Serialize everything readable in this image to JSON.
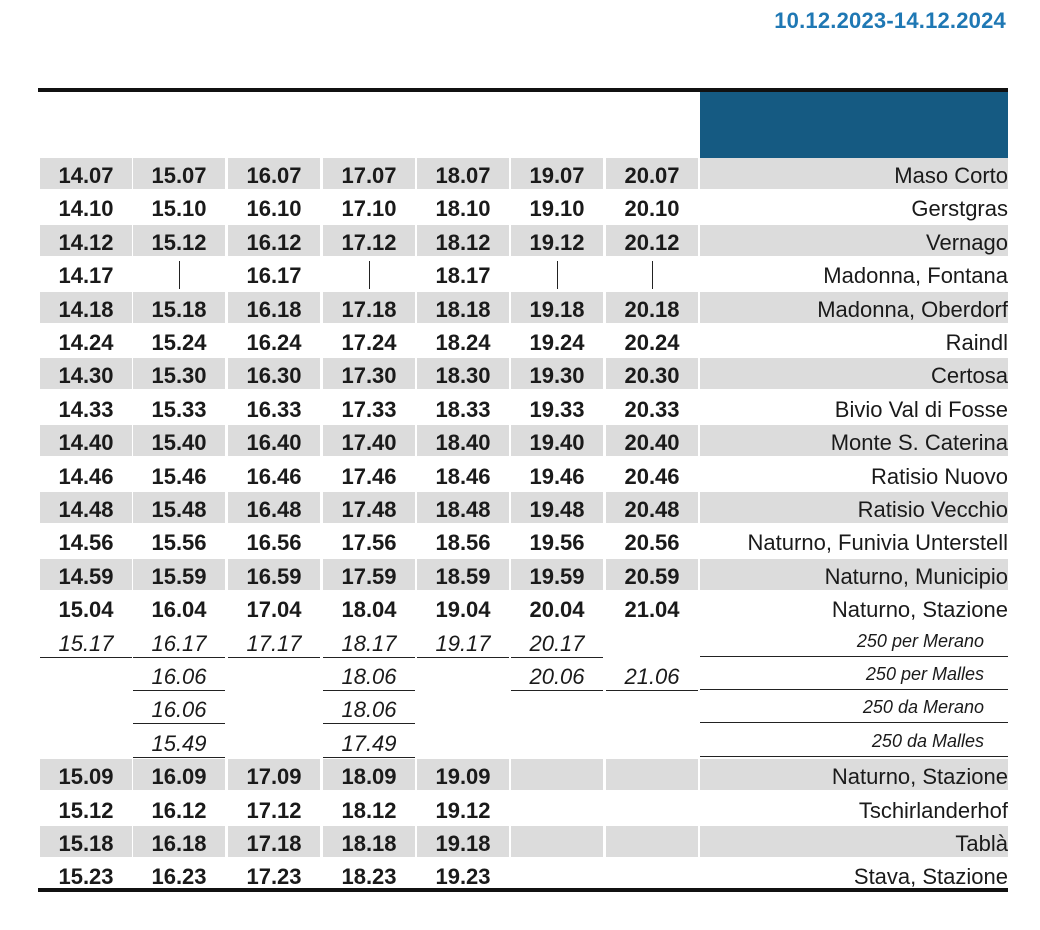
{
  "validity": "10.12.2023-14.12.2024",
  "colors": {
    "accent": "#1f78b4",
    "header_box": "#155a82",
    "shade": "#dcdcdc"
  },
  "columns": 7,
  "rows": [
    {
      "stop": "Maso Corto",
      "style": "bold",
      "shaded": true,
      "times": [
        "14.07",
        "15.07",
        "16.07",
        "17.07",
        "18.07",
        "19.07",
        "20.07"
      ]
    },
    {
      "stop": "Gerstgras",
      "style": "bold",
      "shaded": false,
      "times": [
        "14.10",
        "15.10",
        "16.10",
        "17.10",
        "18.10",
        "19.10",
        "20.10"
      ]
    },
    {
      "stop": "Vernago",
      "style": "bold",
      "shaded": true,
      "times": [
        "14.12",
        "15.12",
        "16.12",
        "17.12",
        "18.12",
        "19.12",
        "20.12"
      ]
    },
    {
      "stop": "Madonna, Fontana",
      "style": "bold",
      "shaded": false,
      "times": [
        "14.17",
        "|",
        "16.17",
        "|",
        "18.17",
        "|",
        "|"
      ]
    },
    {
      "stop": "Madonna, Oberdorf",
      "style": "bold",
      "shaded": true,
      "times": [
        "14.18",
        "15.18",
        "16.18",
        "17.18",
        "18.18",
        "19.18",
        "20.18"
      ]
    },
    {
      "stop": "Raindl",
      "style": "bold",
      "shaded": false,
      "times": [
        "14.24",
        "15.24",
        "16.24",
        "17.24",
        "18.24",
        "19.24",
        "20.24"
      ]
    },
    {
      "stop": "Certosa",
      "style": "bold",
      "shaded": true,
      "times": [
        "14.30",
        "15.30",
        "16.30",
        "17.30",
        "18.30",
        "19.30",
        "20.30"
      ]
    },
    {
      "stop": "Bivio Val di Fosse",
      "style": "bold",
      "shaded": false,
      "times": [
        "14.33",
        "15.33",
        "16.33",
        "17.33",
        "18.33",
        "19.33",
        "20.33"
      ]
    },
    {
      "stop": "Monte S. Caterina",
      "style": "bold",
      "shaded": true,
      "times": [
        "14.40",
        "15.40",
        "16.40",
        "17.40",
        "18.40",
        "19.40",
        "20.40"
      ]
    },
    {
      "stop": "Ratisio Nuovo",
      "style": "bold",
      "shaded": false,
      "times": [
        "14.46",
        "15.46",
        "16.46",
        "17.46",
        "18.46",
        "19.46",
        "20.46"
      ]
    },
    {
      "stop": "Ratisio Vecchio",
      "style": "bold",
      "shaded": true,
      "times": [
        "14.48",
        "15.48",
        "16.48",
        "17.48",
        "18.48",
        "19.48",
        "20.48"
      ]
    },
    {
      "stop": "Naturno, Funivia Unterstell",
      "style": "bold",
      "shaded": false,
      "clip": true,
      "times": [
        "14.56",
        "15.56",
        "16.56",
        "17.56",
        "18.56",
        "19.56",
        "20.56"
      ]
    },
    {
      "stop": "Naturno, Municipio",
      "style": "bold",
      "shaded": true,
      "times": [
        "14.59",
        "15.59",
        "16.59",
        "17.59",
        "18.59",
        "19.59",
        "20.59"
      ]
    },
    {
      "stop": "Naturno, Stazione",
      "style": "bold",
      "shaded": false,
      "times": [
        "15.04",
        "16.04",
        "17.04",
        "18.04",
        "19.04",
        "20.04",
        "21.04"
      ]
    },
    {
      "stop": "250 per Merano",
      "style": "conn",
      "shaded": false,
      "times": [
        "15.17",
        "16.17",
        "17.17",
        "18.17",
        "19.17",
        "20.17",
        ""
      ]
    },
    {
      "stop": "250 per Malles",
      "style": "conn",
      "shaded": false,
      "times": [
        "",
        "16.06",
        "",
        "18.06",
        "",
        "20.06",
        "21.06"
      ]
    },
    {
      "stop": "250 da Merano",
      "style": "conn",
      "shaded": false,
      "times": [
        "",
        "16.06",
        "",
        "18.06",
        "",
        "",
        ""
      ]
    },
    {
      "stop": "250 da Malles",
      "style": "conn",
      "shaded": false,
      "times": [
        "",
        "15.49",
        "",
        "17.49",
        "",
        "",
        ""
      ]
    },
    {
      "stop": "Naturno, Stazione",
      "style": "bold",
      "shaded": true,
      "times": [
        "15.09",
        "16.09",
        "17.09",
        "18.09",
        "19.09",
        "",
        ""
      ]
    },
    {
      "stop": "Tschirlanderhof",
      "style": "bold",
      "shaded": false,
      "times": [
        "15.12",
        "16.12",
        "17.12",
        "18.12",
        "19.12",
        "",
        ""
      ]
    },
    {
      "stop": "Tablà",
      "style": "bold",
      "shaded": true,
      "times": [
        "15.18",
        "16.18",
        "17.18",
        "18.18",
        "19.18",
        "",
        ""
      ]
    },
    {
      "stop": "Stava, Stazione",
      "style": "bold",
      "shaded": false,
      "times": [
        "15.23",
        "16.23",
        "17.23",
        "18.23",
        "19.23",
        "",
        ""
      ]
    }
  ]
}
